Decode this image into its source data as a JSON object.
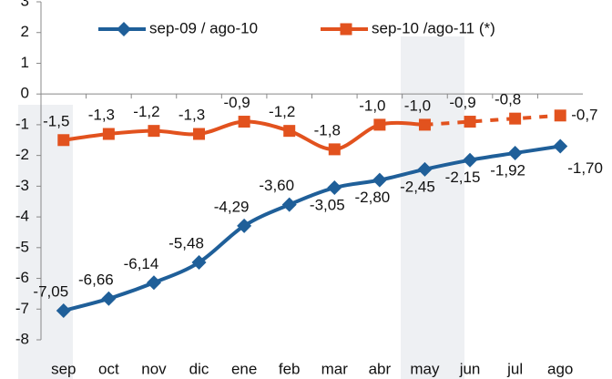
{
  "chart_data": {
    "type": "line",
    "categories": [
      "sep",
      "oct",
      "nov",
      "dic",
      "ene",
      "feb",
      "mar",
      "abr",
      "may",
      "jun",
      "jul",
      "ago"
    ],
    "series": [
      {
        "name": "sep-09 / ago-10",
        "color": "#1f5f99",
        "marker": "diamond",
        "values": [
          -7.05,
          -6.66,
          -6.14,
          -5.48,
          -4.29,
          -3.6,
          -3.05,
          -2.8,
          -2.45,
          -2.15,
          -1.92,
          -1.7
        ],
        "value_labels": [
          "-7,05",
          "-6,66",
          "-6,14",
          "-5,48",
          "-4,29",
          "-3,60",
          "-3,05",
          "-2,80",
          "-2,45",
          "-2,15",
          "-1,92",
          "-1,70"
        ]
      },
      {
        "name": "sep-10 /ago-11 (*)",
        "color": "#e2521e",
        "marker": "square",
        "dashed_from": 8,
        "values": [
          -1.5,
          -1.3,
          -1.2,
          -1.3,
          -0.9,
          -1.2,
          -1.8,
          -1.0,
          -1.0,
          -0.9,
          -0.8,
          -0.7
        ],
        "value_labels": [
          "-1,5",
          "-1,3",
          "-1,2",
          "-1,3",
          "-0,9",
          "-1,2",
          "-1,8",
          "-1,0",
          "-1,0",
          "-0,9",
          "-0,8",
          "-0,7"
        ]
      }
    ],
    "ylim": [
      -8,
      3
    ],
    "yticks": [
      -8,
      -7,
      -6,
      -5,
      -4,
      -3,
      -2,
      -1,
      0,
      1,
      2,
      3
    ],
    "grid": false
  }
}
